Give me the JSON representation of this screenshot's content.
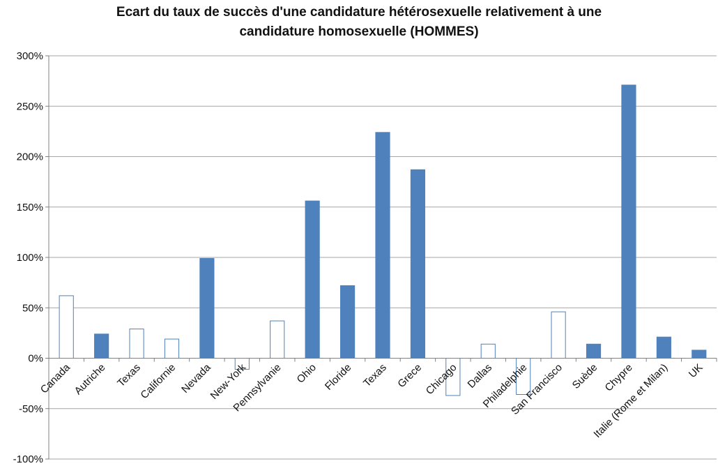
{
  "chart_data": {
    "type": "bar",
    "title_lines": [
      "Ecart du taux de succès d'une candidature hétérosexuelle relativement à une",
      "candidature homosexuelle (HOMMES)"
    ],
    "xlabel": "",
    "ylabel": "",
    "ylim": [
      -100,
      300
    ],
    "y_ticks": [
      -100,
      -50,
      0,
      50,
      100,
      150,
      200,
      250,
      300
    ],
    "y_tick_labels": [
      "-100%",
      "-50%",
      "0%",
      "50%",
      "100%",
      "150%",
      "200%",
      "250%",
      "300%"
    ],
    "grid": true,
    "legend": "none",
    "categories": [
      "Canada",
      "Autriche",
      "Texas",
      "Californie",
      "Nevada",
      "New-York",
      "Pennsylvanie",
      "Ohio",
      "Floride",
      "Texas",
      "Grece",
      "Chicago",
      "Dallas",
      "Philadelphie",
      "San Francisco",
      "Suède",
      "Chypre",
      "Italie (Rome et Milan)",
      "UK"
    ],
    "values": [
      62,
      24,
      29,
      19,
      99,
      -11,
      37,
      156,
      72,
      224,
      187,
      -37,
      14,
      -36,
      46,
      14,
      271,
      21,
      8
    ],
    "filled": [
      false,
      true,
      false,
      false,
      true,
      false,
      false,
      true,
      true,
      true,
      true,
      false,
      false,
      false,
      false,
      true,
      true,
      true,
      true
    ],
    "colors": {
      "fill": "#4f81bd",
      "outline": "#4f81bd",
      "grid": "#a6a6a6",
      "axis": "#808080"
    }
  }
}
